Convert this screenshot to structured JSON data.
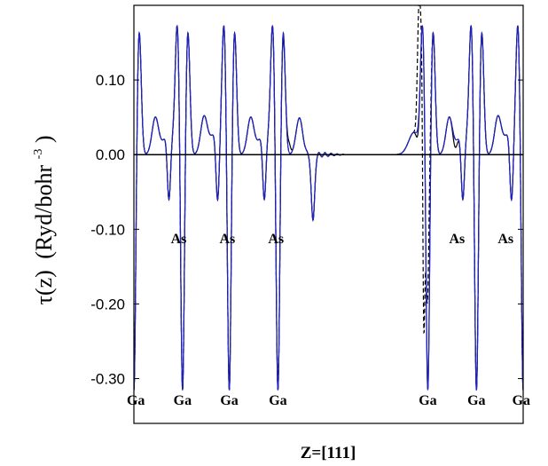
{
  "chart_data": {
    "type": "line",
    "title": "",
    "xlabel": "Z=[111]",
    "ylabel": {
      "symbol": "τ(z)",
      "unit_open": "(Ryd/bohr",
      "unit_exp": "-3",
      "unit_close": ")"
    },
    "xlim": [
      0,
      1
    ],
    "ylim": [
      -0.36,
      0.2
    ],
    "yticks": [
      0.1,
      0.0,
      -0.1,
      -0.2,
      -0.3
    ],
    "ytick_labels": [
      "0.10",
      "0.00",
      "-0.10",
      "-0.20",
      "-0.30"
    ],
    "grid": false,
    "zero_line": true,
    "atoms": {
      "Ga": [
        0.0,
        0.24,
        0.47,
        0.69,
        1.17,
        1.39,
        1.62
      ],
      "As": [
        0.18,
        0.41,
        0.63,
        1.32,
        1.56
      ]
    },
    "ga_peak_positions": [
      0.0,
      0.24,
      0.47,
      0.69,
      1.17,
      1.39,
      1.62
    ],
    "series": [
      {
        "color": "#1f22c6",
        "style": "solid",
        "pattern": {
          "bulk_left": [
            0.0,
            0.7
          ],
          "bulk_right": [
            1.16,
            1.64
          ],
          "ga_min": -0.33,
          "peak_max": 0.17,
          "as_min": -0.09,
          "shoulder": 0.049
        }
      },
      {
        "color": "#000000",
        "style": "dashed",
        "pattern": {
          "defect_positions": [
            0.98,
            1.03
          ],
          "defect_peaks": [
            0.148,
            0.147
          ],
          "defect_min": -0.355
        }
      },
      {
        "color": "#000000",
        "style": "solid",
        "pattern": {
          "wiggles": [
            0.72,
            0.77,
            0.81
          ]
        }
      }
    ]
  }
}
